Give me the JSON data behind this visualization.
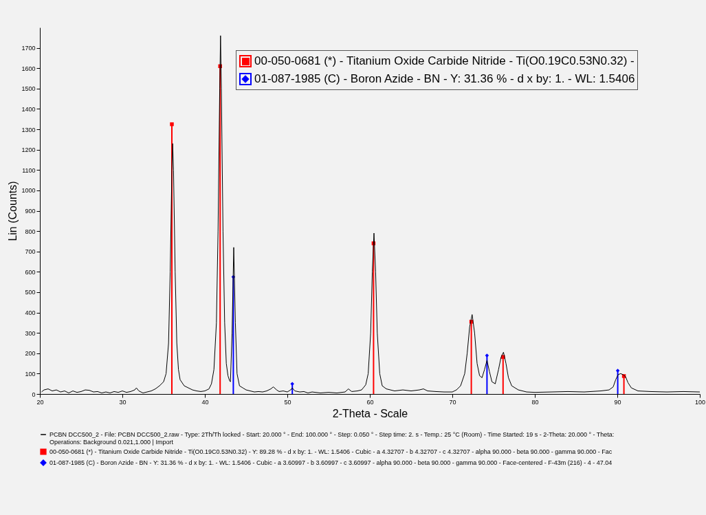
{
  "chart_data": {
    "type": "line",
    "xlabel": "2-Theta - Scale",
    "ylabel": "Lin (Counts)",
    "xlim": [
      20,
      100
    ],
    "ylim": [
      0,
      1800
    ],
    "xticks": [
      20,
      30,
      40,
      50,
      60,
      70,
      80,
      90,
      100
    ],
    "yticks": [
      0,
      100,
      200,
      300,
      400,
      500,
      600,
      700,
      800,
      900,
      1000,
      1100,
      1200,
      1300,
      1400,
      1500,
      1600,
      1700
    ],
    "grid": false,
    "legend": "bottom",
    "annotations": [
      "00-050-0681 (*) - Titanium Oxide Carbide Nitride - Ti(O0.19C0.53N0.32) -",
      "01-087-1985 (C) - Boron Azide - BN - Y: 31.36 % - d x by: 1. - WL: 1.5406"
    ],
    "series": [
      {
        "name": "PCBN DCC500_2 - File: PCBN DCC500_2.raw - Type: 2Th/Th locked - Start: 20.000 ° - End: 100.000 ° - Step: 0.050 ° - Step time: 2. s - Temp.: 25 °C (Room) - Time Started: 19 s - 2-Theta: 20.000 ° - Theta:\nOperations: Background 0.021,1.000 | Import",
        "color": "#000000",
        "marker": "none",
        "x": [
          20.2,
          20.5,
          21,
          21.5,
          22,
          22.5,
          23,
          23.5,
          24,
          24.5,
          25,
          25.5,
          26,
          26.5,
          27,
          27.5,
          28,
          28.5,
          29,
          29.5,
          30,
          30.5,
          31,
          31.5,
          31.7,
          32,
          32.5,
          33,
          33.5,
          34,
          34.5,
          35,
          35.3,
          35.6,
          35.8,
          36.0,
          36.1,
          36.2,
          36.4,
          36.6,
          36.8,
          37,
          37.5,
          38,
          38.5,
          39,
          39.5,
          40,
          40.5,
          40.8,
          41.1,
          41.4,
          41.6,
          41.8,
          41.9,
          42.0,
          42.2,
          42.4,
          42.6,
          42.8,
          43.0,
          43.1,
          43.3,
          43.5,
          43.7,
          43.9,
          44.2,
          44.6,
          45,
          45.5,
          46,
          46.5,
          47,
          47.5,
          48,
          48.3,
          48.7,
          49,
          49.5,
          50,
          50.4,
          50.6,
          50.9,
          51.5,
          52,
          52.5,
          53,
          54,
          55,
          56,
          57,
          57.4,
          57.8,
          58.5,
          59,
          59.5,
          59.8,
          60.1,
          60.3,
          60.5,
          60.7,
          60.9,
          61.2,
          61.5,
          62,
          63,
          64,
          65,
          66,
          66.5,
          67,
          68,
          69,
          70,
          70.5,
          71,
          71.5,
          71.8,
          72.1,
          72.4,
          72.7,
          73,
          73.3,
          73.6,
          73.9,
          74.2,
          74.5,
          74.8,
          75.2,
          75.6,
          75.9,
          76.2,
          76.5,
          76.8,
          77.2,
          78,
          79,
          80,
          82,
          84,
          86,
          88,
          89,
          89.5,
          89.8,
          90.1,
          90.4,
          90.7,
          91,
          91.3,
          91.7,
          92.5,
          94,
          96,
          98,
          100
        ],
        "values": [
          10,
          20,
          25,
          15,
          20,
          10,
          15,
          5,
          15,
          8,
          12,
          20,
          18,
          10,
          12,
          5,
          10,
          5,
          12,
          8,
          15,
          8,
          12,
          20,
          30,
          15,
          5,
          10,
          15,
          25,
          40,
          60,
          100,
          250,
          600,
          1100,
          1230,
          1100,
          600,
          250,
          120,
          70,
          40,
          30,
          20,
          15,
          12,
          15,
          25,
          50,
          120,
          350,
          800,
          1500,
          1760,
          1500,
          800,
          350,
          150,
          90,
          65,
          60,
          300,
          720,
          350,
          100,
          40,
          30,
          20,
          15,
          10,
          12,
          10,
          15,
          25,
          35,
          20,
          12,
          15,
          10,
          20,
          30,
          15,
          10,
          12,
          5,
          10,
          5,
          8,
          5,
          10,
          25,
          12,
          15,
          20,
          45,
          100,
          300,
          600,
          790,
          600,
          300,
          100,
          40,
          25,
          15,
          20,
          15,
          20,
          25,
          15,
          12,
          10,
          10,
          20,
          40,
          100,
          200,
          330,
          390,
          300,
          150,
          90,
          80,
          120,
          165,
          110,
          60,
          50,
          120,
          180,
          205,
          150,
          80,
          40,
          20,
          10,
          8,
          10,
          12,
          10,
          15,
          20,
          35,
          70,
          95,
          100,
          95,
          85,
          55,
          30,
          15,
          12,
          10,
          12,
          10
        ]
      },
      {
        "name": "00-050-0681 (*) - Titanium Oxide Carbide Nitride - Ti(O0.19C0.53N0.32) - Y: 89.28 % - d x by: 1. - WL: 1.5406 - Cubic - a 4.32707 - b 4.32707 - c 4.32707 - alpha 90.000 - beta 90.000 - gamma 90.000 - Fac",
        "type": "lollipop",
        "color": "#ff0000",
        "marker": "square",
        "x": [
          36.0,
          41.85,
          60.45,
          72.3,
          76.15,
          90.8
        ],
        "values": [
          1325,
          1610,
          740,
          355,
          182,
          88
        ]
      },
      {
        "name": "01-087-1985 (C) - Boron Azide - BN - Y: 31.36 % - d x by: 1. - WL: 1.5406 - Cubic - a 3.60997 - b 3.60997 - c 3.60997 - alpha 90.000 - beta 90.000 - gamma 90.000 - Face-centered - F-43m (216) - 4 - 47.04",
        "type": "lollipop",
        "color": "#0000ff",
        "marker": "diamond",
        "x": [
          43.45,
          50.6,
          74.2,
          90.05
        ],
        "values": [
          575,
          50,
          189,
          115
        ]
      }
    ]
  }
}
